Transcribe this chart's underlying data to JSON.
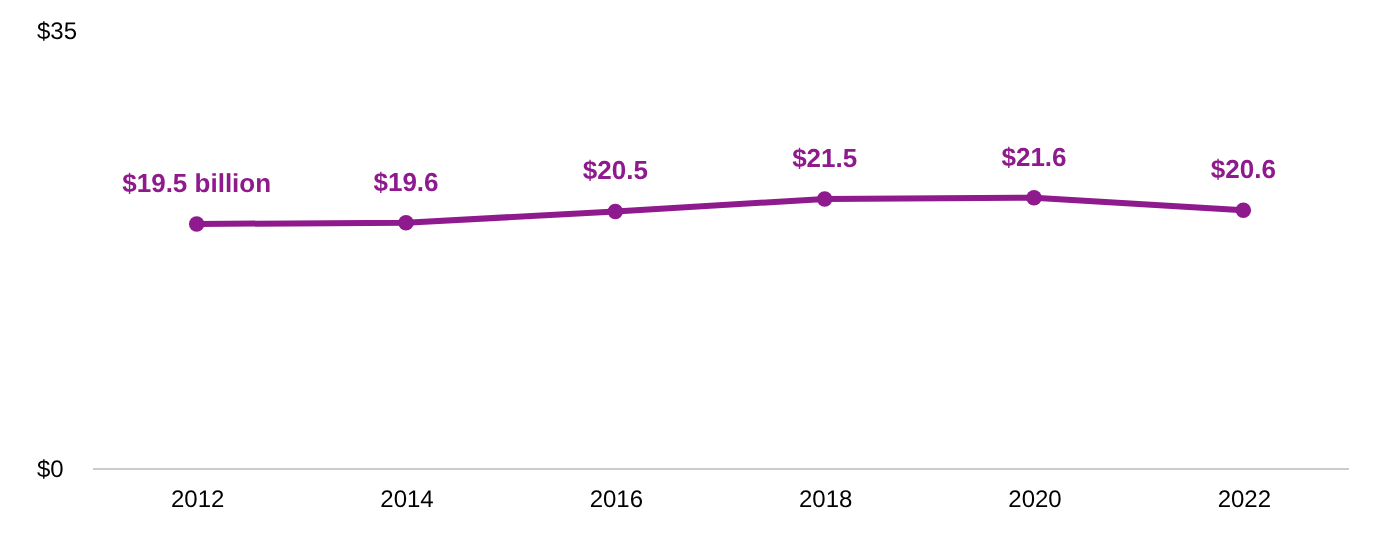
{
  "chart_data": {
    "type": "line",
    "categories": [
      "2012",
      "2014",
      "2016",
      "2018",
      "2020",
      "2022"
    ],
    "series": [
      {
        "color": "#8e1a8e",
        "values": [
          19.5,
          19.6,
          20.5,
          21.5,
          21.6,
          20.6
        ],
        "value_labels": [
          "$19.5 billion",
          "$19.6",
          "$20.5",
          "$21.5",
          "$21.6",
          "$20.6"
        ]
      }
    ],
    "ylim": [
      0,
      35
    ],
    "yticks": [
      {
        "value": 0,
        "label": "$0"
      },
      {
        "value": 35,
        "label": "$35"
      }
    ],
    "marker": "circle",
    "line_style": "solid"
  }
}
